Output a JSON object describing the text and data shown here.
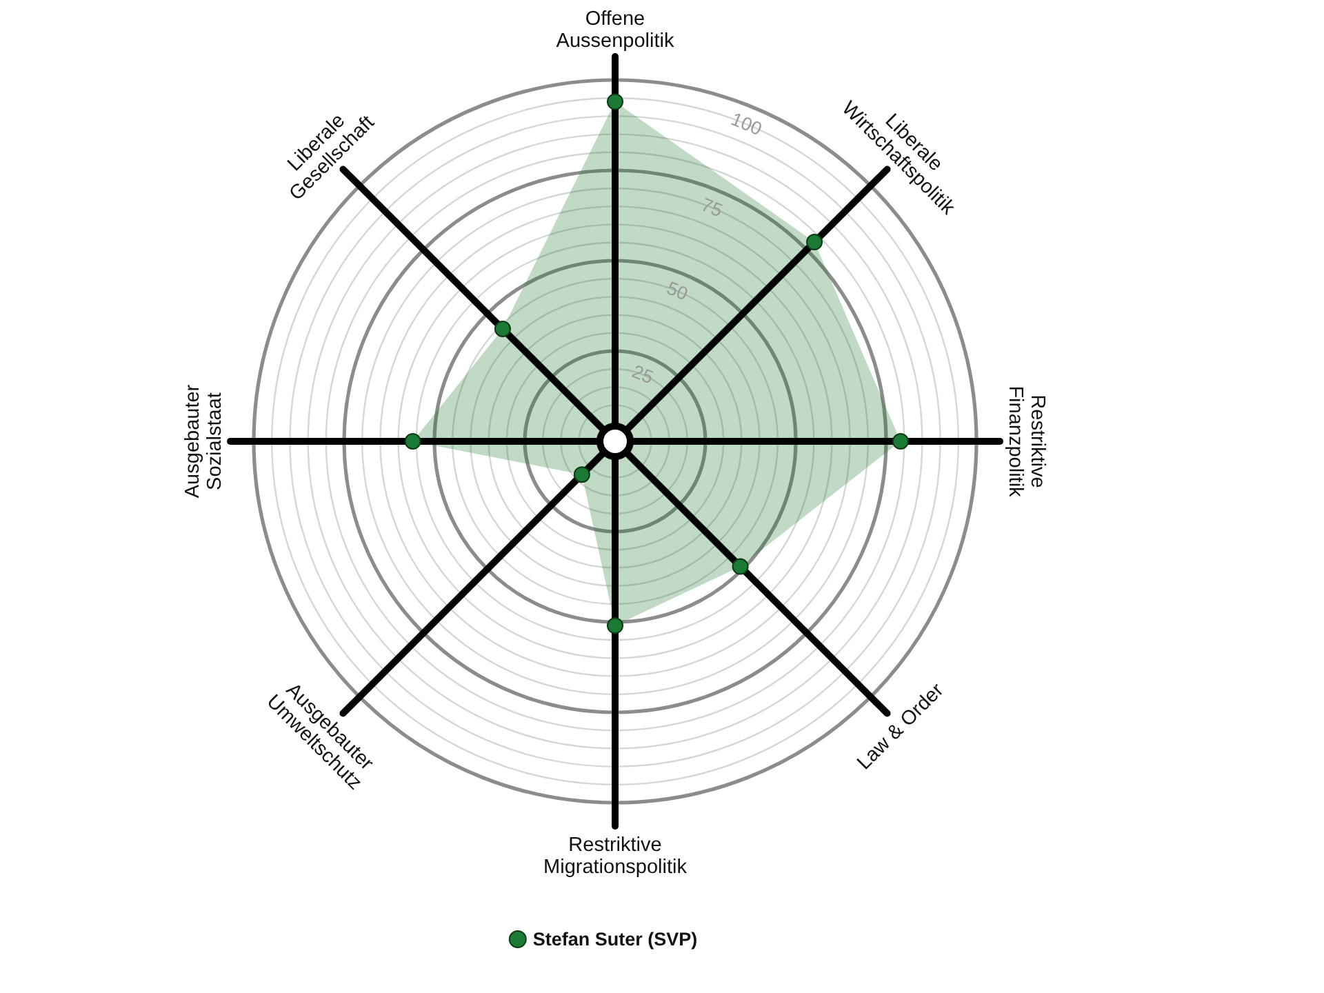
{
  "chart_data": {
    "type": "radar",
    "categories": [
      "Offene\nAussenpolitik",
      "Liberale\nWirtschaftspolitik",
      "Restriktive\nFinanzpolitik",
      "Law & Order",
      "Restriktive\nMigrationspolitik",
      "Ausgebauter\nUmweltschutz",
      "Ausgebauter\nSozialstaat",
      "Liberale\nGesellschaft"
    ],
    "series": [
      {
        "name": "Stefan Suter (SVP)",
        "color": "#1b7b34",
        "values": [
          94,
          78,
          79,
          49,
          51,
          13,
          56,
          44
        ]
      }
    ],
    "ylim": [
      0,
      100
    ],
    "yticks": [
      25,
      50,
      75,
      100
    ],
    "grid": true,
    "legend": "bottom",
    "marker": "circle"
  }
}
